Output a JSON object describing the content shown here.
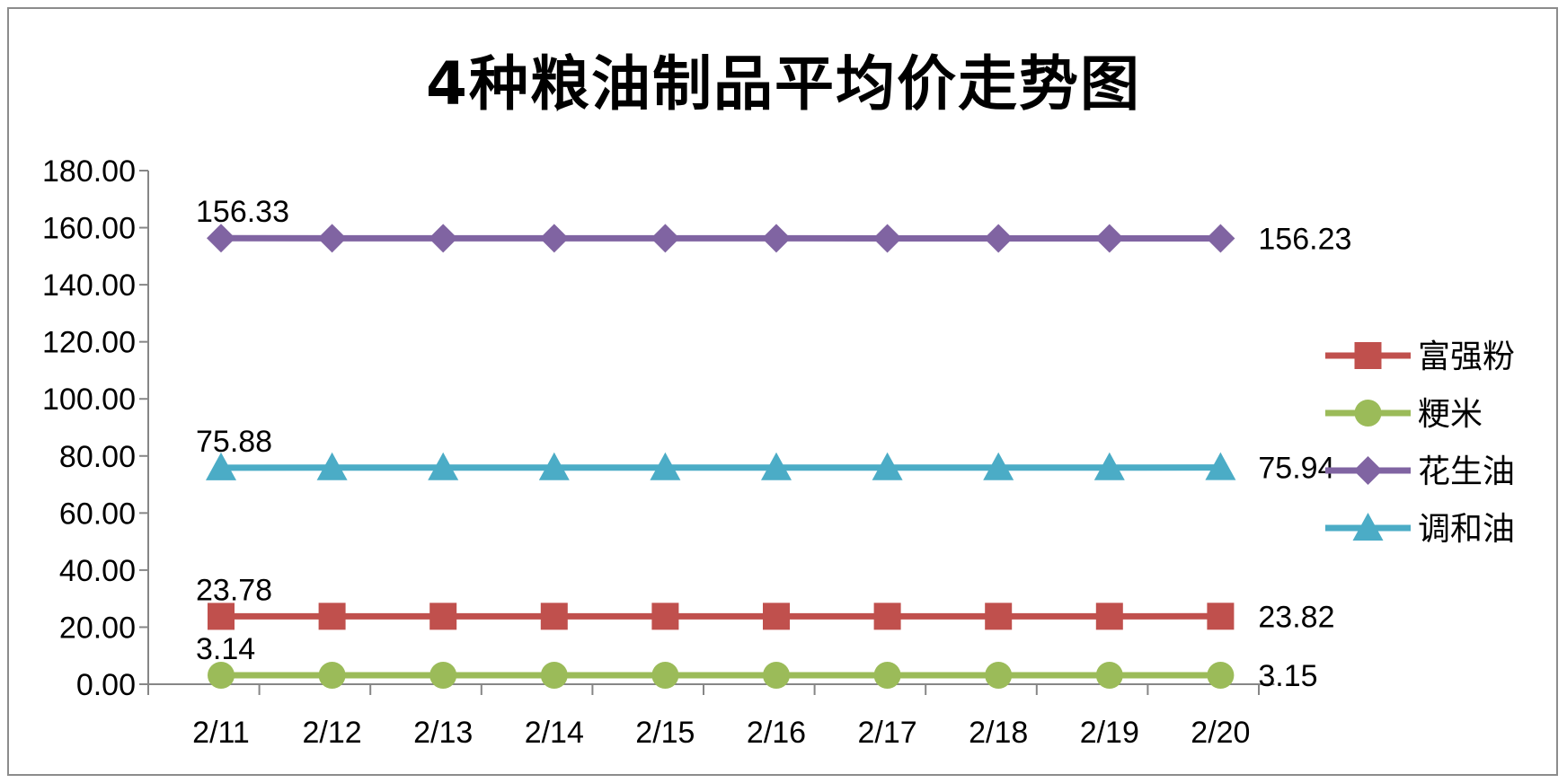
{
  "chart_data": {
    "type": "line",
    "title": "4种粮油制品平均价走势图",
    "categories": [
      "2/11",
      "2/12",
      "2/13",
      "2/14",
      "2/15",
      "2/16",
      "2/17",
      "2/18",
      "2/19",
      "2/20"
    ],
    "ylim": [
      0,
      180
    ],
    "yticks": [
      0,
      20,
      40,
      60,
      80,
      100,
      120,
      140,
      160,
      180
    ],
    "ytick_labels": [
      "0.00",
      "20.00",
      "40.00",
      "60.00",
      "80.00",
      "100.00",
      "120.00",
      "140.00",
      "160.00",
      "180.00"
    ],
    "legend_position": "right",
    "grid": false,
    "series": [
      {
        "name": "富强粉",
        "color": "#c0504d",
        "marker": "square",
        "values": [
          23.78,
          23.8,
          23.8,
          23.8,
          23.8,
          23.8,
          23.8,
          23.8,
          23.8,
          23.82
        ],
        "start_label": "23.78",
        "end_label": "23.82"
      },
      {
        "name": "粳米",
        "color": "#9bbb59",
        "marker": "circle",
        "values": [
          3.14,
          3.14,
          3.14,
          3.14,
          3.15,
          3.15,
          3.15,
          3.15,
          3.15,
          3.15
        ],
        "start_label": "3.14",
        "end_label": "3.15"
      },
      {
        "name": "花生油",
        "color": "#8064a2",
        "marker": "diamond",
        "values": [
          156.33,
          156.3,
          156.3,
          156.3,
          156.28,
          156.28,
          156.25,
          156.25,
          156.23,
          156.23
        ],
        "start_label": "156.33",
        "end_label": "156.23"
      },
      {
        "name": "调和油",
        "color": "#4bacc6",
        "marker": "triangle",
        "values": [
          75.88,
          75.9,
          75.9,
          75.9,
          75.9,
          75.92,
          75.92,
          75.93,
          75.93,
          75.94
        ],
        "start_label": "75.88",
        "end_label": "75.94"
      }
    ]
  }
}
